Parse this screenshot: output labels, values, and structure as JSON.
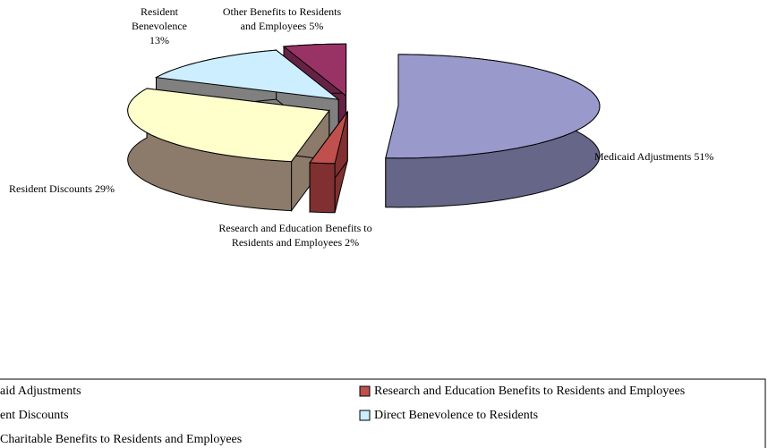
{
  "chart_data": {
    "type": "pie3d",
    "categories": [
      "Medicaid Adjustments",
      "Research and Education Benefits to Residents and Employees",
      "Resident Discounts",
      "Resident Benevolence",
      "Other Benefits to Residents and Employees"
    ],
    "values": [
      51,
      2,
      29,
      13,
      5
    ],
    "value_labels": [
      [
        "Medicaid Adjustments 51%"
      ],
      [
        "Research and Education Benefits to",
        "Residents and Employees 2%"
      ],
      [
        "Resident Discounts 29%"
      ],
      [
        "Resident",
        "Benevolence",
        "13%"
      ],
      [
        "Other Benefits to Residents",
        "and Employees 5%"
      ]
    ],
    "colors": [
      "#9999cc",
      "#c0504d",
      "#ffffcc",
      "#cceeff",
      "#993366"
    ],
    "side_colors": [
      "#666688",
      "#803030",
      "#8c7b6a",
      "#808080",
      "#662244"
    ],
    "legend": [
      "aid Adjustments",
      "Research and Education Benefits to Residents and Employees",
      "ent Discounts",
      "Direct Benevolence to Residents",
      " Charitable Benefits to Residents and Employees"
    ]
  }
}
